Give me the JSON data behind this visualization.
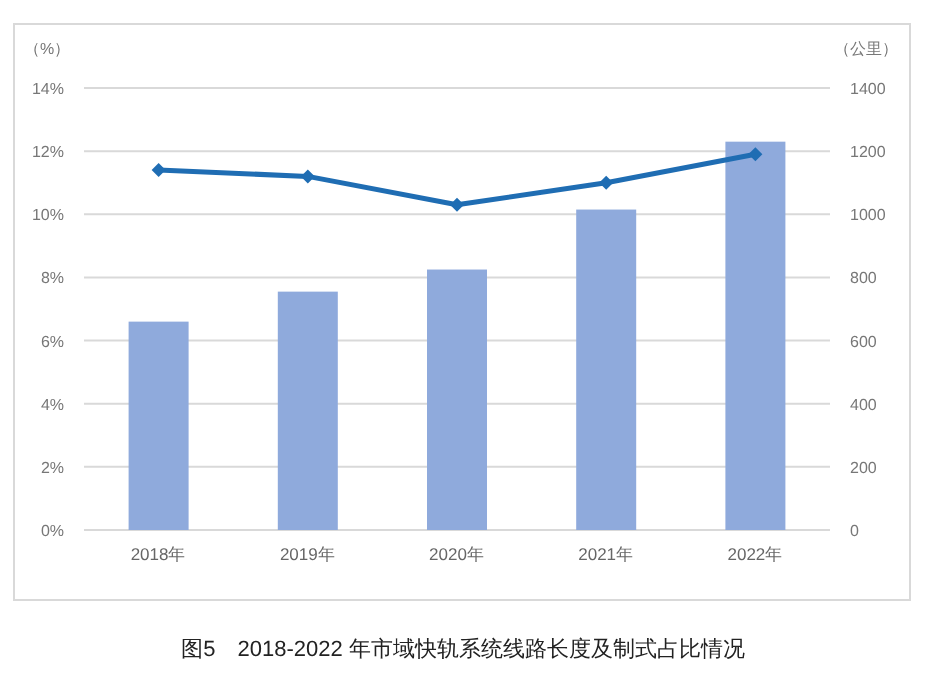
{
  "chart_data": {
    "type": "bar",
    "categories": [
      "2018年",
      "2019年",
      "2020年",
      "2021年",
      "2022年"
    ],
    "series": [
      {
        "axis": "y2",
        "color": "#8faadc",
        "values": [
          660,
          755,
          825,
          1015,
          1230
        ]
      },
      {
        "type": "line",
        "axis": "y",
        "color": "#1f6db3",
        "marker": "diamond",
        "values": [
          11.4,
          11.2,
          10.3,
          11.0,
          11.9
        ]
      }
    ],
    "ylabel": "（%）",
    "y2label": "（公里）",
    "ylim": [
      0,
      14
    ],
    "yticks": [
      {
        "value": 0,
        "label": "0%"
      },
      {
        "value": 2,
        "label": "2%"
      },
      {
        "value": 4,
        "label": "4%"
      },
      {
        "value": 6,
        "label": "6%"
      },
      {
        "value": 8,
        "label": "8%"
      },
      {
        "value": 10,
        "label": "10%"
      },
      {
        "value": 12,
        "label": "12%"
      },
      {
        "value": 14,
        "label": "14%"
      }
    ],
    "y2lim": [
      0,
      1400
    ],
    "y2ticks": [
      0,
      200,
      400,
      600,
      800,
      1000,
      1200,
      1400
    ],
    "grid": "y",
    "annotations": [
      "图5　2018-2022 年市域快轨系统线路长度及制式占比情况"
    ]
  }
}
